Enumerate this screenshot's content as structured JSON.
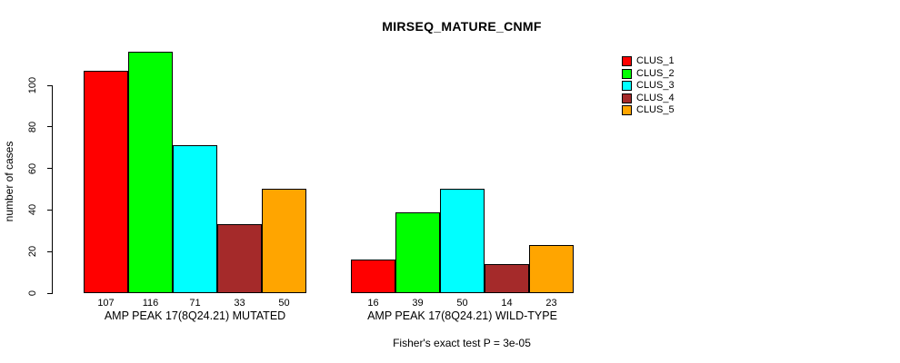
{
  "chart_data": {
    "type": "bar",
    "title": "MIRSEQ_MATURE_CNMF",
    "ylabel": "number of cases",
    "xlabel": "",
    "footer": "Fisher's exact test P = 3e-05",
    "ylim": [
      0,
      116
    ],
    "yticks": [
      0,
      20,
      40,
      60,
      80,
      100
    ],
    "grid": false,
    "legend_position": "right",
    "categories": [
      "AMP PEAK 17(8Q24.21) MUTATED",
      "AMP PEAK 17(8Q24.21) WILD-TYPE"
    ],
    "series": [
      {
        "name": "CLUS_1",
        "color": "#FF0000",
        "values": [
          107,
          16
        ]
      },
      {
        "name": "CLUS_2",
        "color": "#00FF00",
        "values": [
          116,
          39
        ]
      },
      {
        "name": "CLUS_3",
        "color": "#00FFFF",
        "values": [
          71,
          50
        ]
      },
      {
        "name": "CLUS_4",
        "color": "#A52A2A",
        "values": [
          33,
          14
        ]
      },
      {
        "name": "CLUS_5",
        "color": "#FFA500",
        "values": [
          50,
          23
        ]
      }
    ],
    "bar_labels": [
      [
        107,
        116,
        71,
        33,
        50
      ],
      [
        16,
        39,
        50,
        14,
        23
      ]
    ],
    "bar_border_color": "#000000",
    "text_color": "#000000",
    "background_color": "#FFFFFF"
  }
}
